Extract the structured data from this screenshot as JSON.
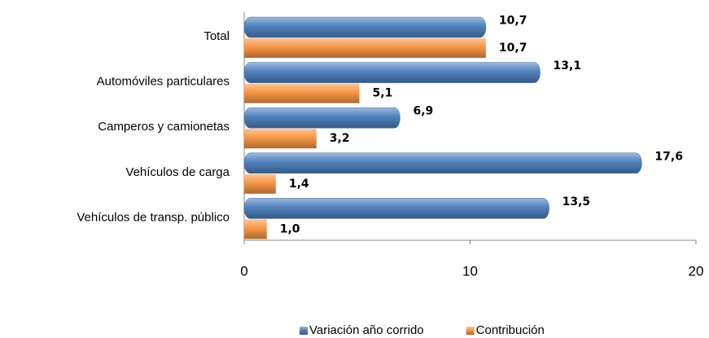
{
  "chart_data": {
    "type": "bar",
    "orientation": "horizontal",
    "categories": [
      "Total",
      "Automóviles particulares",
      "Camperos y camionetas",
      "Vehículos de carga",
      "Vehículos de transp. público"
    ],
    "series": [
      {
        "name": "Variación año corrido",
        "color": "#4f81bd",
        "values": [
          10.7,
          13.1,
          6.9,
          17.6,
          13.5
        ],
        "value_labels": [
          "10,7",
          "13,1",
          "6,9",
          "17,6",
          "13,5"
        ]
      },
      {
        "name": "Contribución",
        "color": "#f79646",
        "values": [
          10.7,
          5.1,
          3.2,
          1.4,
          1.0
        ],
        "value_labels": [
          "10,7",
          "5,1",
          "3,2",
          "1,4",
          "1,0"
        ]
      }
    ],
    "xlim": [
      0,
      20
    ],
    "xticks": [
      0,
      10,
      20
    ],
    "grid": false,
    "legend": "bottom"
  }
}
